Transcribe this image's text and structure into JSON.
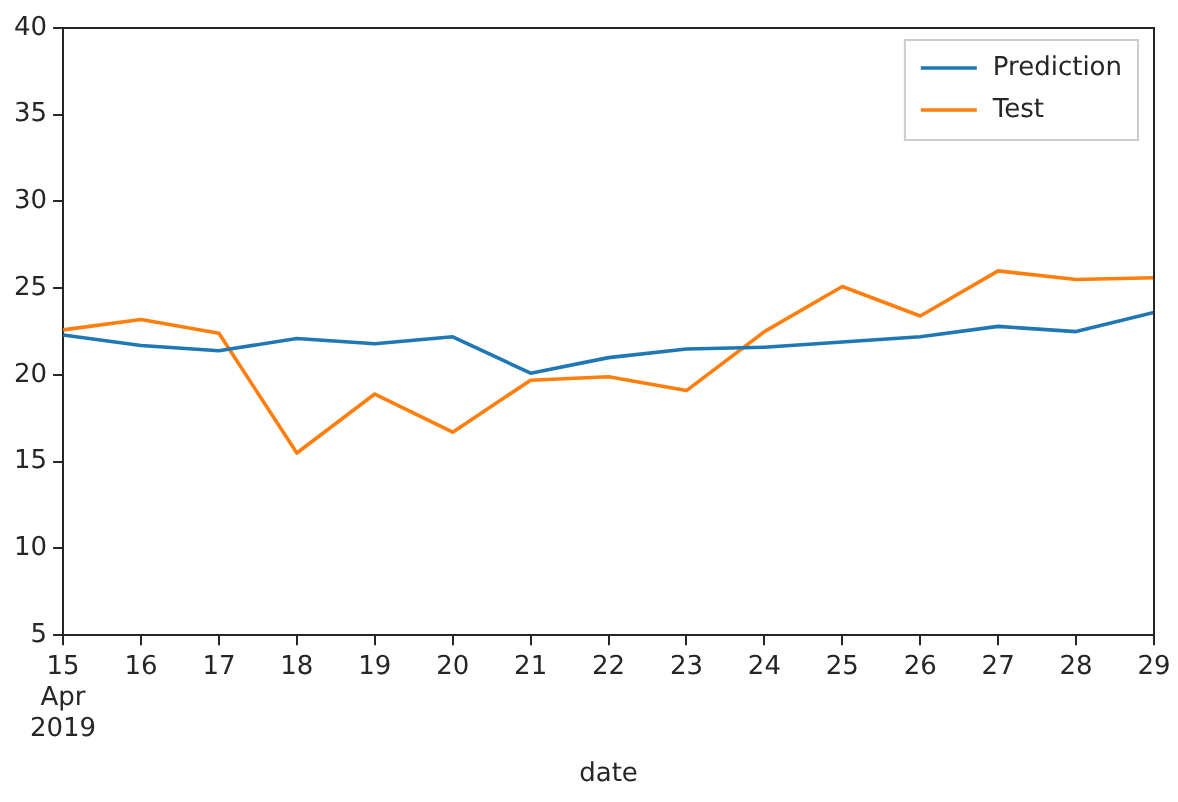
{
  "chart_data": {
    "type": "line",
    "xlabel": "date",
    "x": [
      "2019-04-15",
      "2019-04-16",
      "2019-04-17",
      "2019-04-18",
      "2019-04-19",
      "2019-04-20",
      "2019-04-21",
      "2019-04-22",
      "2019-04-23",
      "2019-04-24",
      "2019-04-25",
      "2019-04-26",
      "2019-04-27",
      "2019-04-28",
      "2019-04-29"
    ],
    "series": [
      {
        "name": "Prediction",
        "color": "#1f77b4",
        "values": [
          22.3,
          21.7,
          21.4,
          22.1,
          21.8,
          22.2,
          20.1,
          21.0,
          21.5,
          21.6,
          21.9,
          22.2,
          22.8,
          22.5,
          23.6
        ]
      },
      {
        "name": "Test",
        "color": "#ff7f0e",
        "values": [
          22.6,
          23.2,
          22.4,
          15.5,
          18.9,
          16.7,
          19.7,
          19.9,
          19.1,
          22.5,
          25.1,
          23.4,
          26.0,
          25.5,
          25.6
        ]
      }
    ],
    "xlim": [
      "2019-04-15",
      "2019-04-29"
    ],
    "xticks": [
      {
        "value": "2019-04-15",
        "label": "15\nApr\n2019"
      },
      {
        "value": "2019-04-16",
        "label": "16"
      },
      {
        "value": "2019-04-17",
        "label": "17"
      },
      {
        "value": "2019-04-18",
        "label": "18"
      },
      {
        "value": "2019-04-19",
        "label": "19"
      },
      {
        "value": "2019-04-20",
        "label": "20"
      },
      {
        "value": "2019-04-21",
        "label": "21"
      },
      {
        "value": "2019-04-22",
        "label": "22"
      },
      {
        "value": "2019-04-23",
        "label": "23"
      },
      {
        "value": "2019-04-24",
        "label": "24"
      },
      {
        "value": "2019-04-25",
        "label": "25"
      },
      {
        "value": "2019-04-26",
        "label": "26"
      },
      {
        "value": "2019-04-27",
        "label": "27"
      },
      {
        "value": "2019-04-28",
        "label": "28"
      },
      {
        "value": "2019-04-29",
        "label": "29"
      }
    ],
    "ylim": [
      5,
      40
    ],
    "yticks": [
      5,
      10,
      15,
      20,
      25,
      30,
      35,
      40
    ],
    "grid": false,
    "legend": "top right",
    "marker": "none",
    "line_style": "solid"
  }
}
